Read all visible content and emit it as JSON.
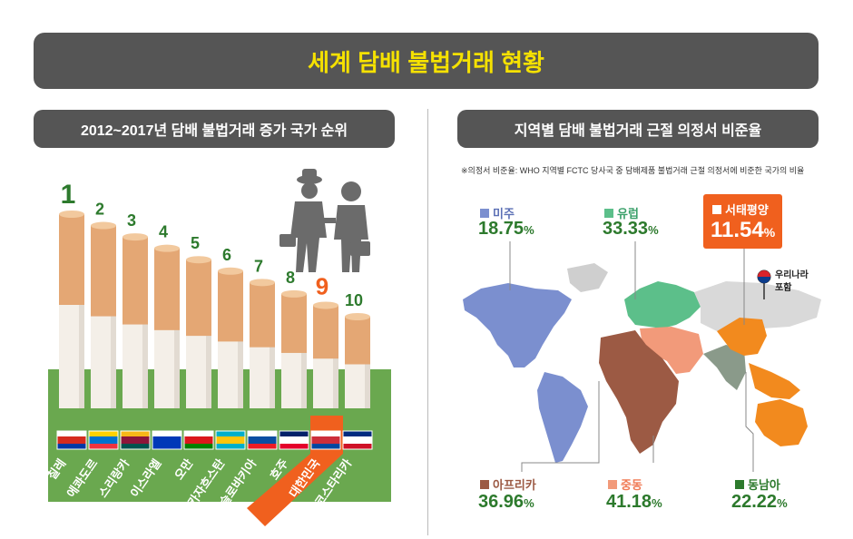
{
  "header": {
    "title": "세계 담배 불법거래 현황"
  },
  "left_panel": {
    "title": "2012~2017년 담배 불법거래 증가 국가 순위"
  },
  "right_panel": {
    "title": "지역별 담배 불법거래 근절 의정서 비준율",
    "note": "※의정서 비준율: WHO 지역별 FCTC 당사국 중 담배제품 불법거래 근절 의정서에 비준한 국가의 비율",
    "korea_note_line1": "우리나라",
    "korea_note_line2": "포함"
  },
  "colors": {
    "header_bg": "#555555",
    "header_text": "#f5e100",
    "green": "#2d7a2d",
    "highlight": "#f0601e",
    "field_green": "#6aa84f",
    "americas": "#7b8fcf",
    "europe": "#5cbf8a",
    "africa": "#9c5a44",
    "middle_east": "#f29a7a",
    "southeast_asia": "#8a9a8a",
    "western_pacific": "#f28a1e"
  },
  "chart_data": [
    {
      "type": "bar",
      "title": "2012~2017년 담배 불법거래 증가 국가 순위",
      "categories": [
        "칠레",
        "에콰도르",
        "스리랑카",
        "이스라엘",
        "오만",
        "카자흐스탄",
        "슬로바키아",
        "호주",
        "대한민국",
        "코스타리카"
      ],
      "ranks": [
        "1",
        "2",
        "3",
        "4",
        "5",
        "6",
        "7",
        "8",
        "9",
        "10"
      ],
      "values": [
        10,
        9,
        8,
        7,
        6,
        5,
        4,
        3,
        2,
        1
      ],
      "highlight_index": 8,
      "flag_icons": [
        "chile-flag-icon",
        "ecuador-flag-icon",
        "sri-lanka-flag-icon",
        "israel-flag-icon",
        "oman-flag-icon",
        "kazakhstan-flag-icon",
        "slovakia-flag-icon",
        "australia-flag-icon",
        "korea-flag-icon",
        "costa-rica-flag-icon"
      ]
    },
    {
      "type": "table",
      "title": "지역별 담배 불법거래 근절 의정서 비준율",
      "regions": [
        {
          "name": "미주",
          "value": "18.75",
          "unit": "%",
          "color": "#7b8fcf"
        },
        {
          "name": "유럽",
          "value": "33.33",
          "unit": "%",
          "color": "#5cbf8a"
        },
        {
          "name": "서태평양",
          "value": "11.54",
          "unit": "%",
          "color": "#f28a1e"
        },
        {
          "name": "아프리카",
          "value": "36.96",
          "unit": "%",
          "color": "#9c5a44"
        },
        {
          "name": "중동",
          "value": "41.18",
          "unit": "%",
          "color": "#f29a7a"
        },
        {
          "name": "동남아",
          "value": "22.22",
          "unit": "%",
          "color": "#8a9a8a"
        }
      ]
    }
  ]
}
